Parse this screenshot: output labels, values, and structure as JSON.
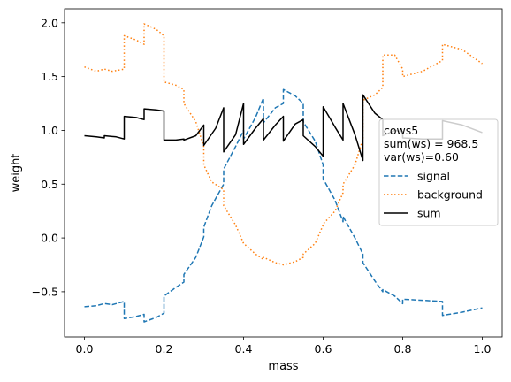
{
  "chart_data": {
    "type": "line",
    "xlabel": "mass",
    "ylabel": "weight",
    "xlim": [
      -0.05,
      1.05
    ],
    "ylim": [
      -0.92,
      2.13
    ],
    "xticks": [
      0.0,
      0.2,
      0.4,
      0.6,
      0.8,
      1.0
    ],
    "xtick_labels": [
      "0.0",
      "0.2",
      "0.4",
      "0.6",
      "0.8",
      "1.0"
    ],
    "yticks": [
      -0.5,
      0.0,
      0.5,
      1.0,
      1.5,
      2.0
    ],
    "ytick_labels": [
      "−0.5",
      "0.0",
      "0.5",
      "1.0",
      "1.5",
      "2.0"
    ],
    "grid": false,
    "legend": {
      "placement": "center-right",
      "title_lines": [
        "cows5",
        "sum(ws) = 968.5",
        "var(ws)=0.60"
      ]
    },
    "series": [
      {
        "name": "signal",
        "color": "#1f77b4",
        "style": "dashed",
        "x": [
          0.0,
          0.03,
          0.05,
          0.07,
          0.1,
          0.1,
          0.13,
          0.15,
          0.15,
          0.18,
          0.2,
          0.2,
          0.23,
          0.25,
          0.25,
          0.28,
          0.3,
          0.3,
          0.32,
          0.35,
          0.35,
          0.38,
          0.4,
          0.4,
          0.43,
          0.45,
          0.45,
          0.48,
          0.5,
          0.5,
          0.53,
          0.55,
          0.55,
          0.58,
          0.6,
          0.6,
          0.63,
          0.65,
          0.65,
          0.68,
          0.7,
          0.7,
          0.73,
          0.75,
          0.75,
          0.78,
          0.8,
          0.8,
          0.85,
          0.9,
          0.9,
          0.95,
          1.0
        ],
        "y": [
          -0.64,
          -0.63,
          -0.61,
          -0.62,
          -0.59,
          -0.75,
          -0.73,
          -0.71,
          -0.78,
          -0.74,
          -0.7,
          -0.54,
          -0.46,
          -0.41,
          -0.34,
          -0.18,
          0.01,
          0.1,
          0.3,
          0.5,
          0.64,
          0.85,
          1.0,
          0.92,
          1.12,
          1.3,
          1.07,
          1.21,
          1.25,
          1.38,
          1.32,
          1.25,
          1.08,
          0.9,
          0.68,
          0.55,
          0.35,
          0.15,
          0.2,
          0.0,
          -0.15,
          -0.23,
          -0.4,
          -0.5,
          -0.48,
          -0.54,
          -0.61,
          -0.57,
          -0.58,
          -0.59,
          -0.72,
          -0.69,
          -0.65
        ]
      },
      {
        "name": "background",
        "color": "#ff7f0e",
        "style": "dotted",
        "x": [
          0.0,
          0.03,
          0.05,
          0.07,
          0.1,
          0.1,
          0.13,
          0.15,
          0.15,
          0.18,
          0.2,
          0.2,
          0.23,
          0.25,
          0.25,
          0.28,
          0.3,
          0.3,
          0.32,
          0.35,
          0.35,
          0.38,
          0.4,
          0.4,
          0.43,
          0.45,
          0.45,
          0.48,
          0.5,
          0.5,
          0.53,
          0.55,
          0.55,
          0.58,
          0.6,
          0.6,
          0.63,
          0.65,
          0.65,
          0.68,
          0.7,
          0.7,
          0.73,
          0.75,
          0.75,
          0.78,
          0.8,
          0.8,
          0.85,
          0.9,
          0.9,
          0.95,
          1.0
        ],
        "y": [
          1.59,
          1.55,
          1.57,
          1.55,
          1.57,
          1.88,
          1.84,
          1.8,
          1.99,
          1.94,
          1.88,
          1.45,
          1.42,
          1.38,
          1.25,
          1.08,
          0.85,
          0.68,
          0.52,
          0.45,
          0.3,
          0.12,
          -0.05,
          -0.05,
          -0.15,
          -0.2,
          -0.18,
          -0.23,
          -0.25,
          -0.25,
          -0.22,
          -0.18,
          -0.15,
          -0.05,
          0.12,
          0.13,
          0.25,
          0.42,
          0.5,
          0.68,
          0.92,
          1.28,
          1.33,
          1.4,
          1.7,
          1.7,
          1.57,
          1.5,
          1.55,
          1.65,
          1.8,
          1.75,
          1.62
        ]
      },
      {
        "name": "sum",
        "color": "#000000",
        "style": "solid",
        "x": [
          0.0,
          0.03,
          0.05,
          0.05,
          0.08,
          0.1,
          0.1,
          0.13,
          0.15,
          0.15,
          0.18,
          0.2,
          0.2,
          0.23,
          0.25,
          0.25,
          0.28,
          0.3,
          0.3,
          0.33,
          0.35,
          0.35,
          0.38,
          0.4,
          0.4,
          0.43,
          0.45,
          0.45,
          0.48,
          0.5,
          0.5,
          0.53,
          0.55,
          0.55,
          0.58,
          0.6,
          0.6,
          0.63,
          0.65,
          0.65,
          0.68,
          0.7,
          0.7,
          0.73,
          0.75,
          0.75,
          0.78,
          0.8,
          0.8,
          0.85,
          0.9,
          0.9,
          0.95,
          1.0
        ],
        "y": [
          0.95,
          0.94,
          0.93,
          0.95,
          0.94,
          0.92,
          1.13,
          1.12,
          1.1,
          1.2,
          1.19,
          1.18,
          0.91,
          0.91,
          0.92,
          0.91,
          0.95,
          1.05,
          0.86,
          1.02,
          1.21,
          0.8,
          0.96,
          1.25,
          0.87,
          1.02,
          1.11,
          0.91,
          1.05,
          1.13,
          0.9,
          1.06,
          1.1,
          0.95,
          0.85,
          0.76,
          1.22,
          1.03,
          0.91,
          1.25,
          0.96,
          0.72,
          1.33,
          1.16,
          1.1,
          0.95,
          1.0,
          0.99,
          0.93,
          0.92,
          0.92,
          1.09,
          1.05,
          0.98
        ]
      }
    ]
  }
}
